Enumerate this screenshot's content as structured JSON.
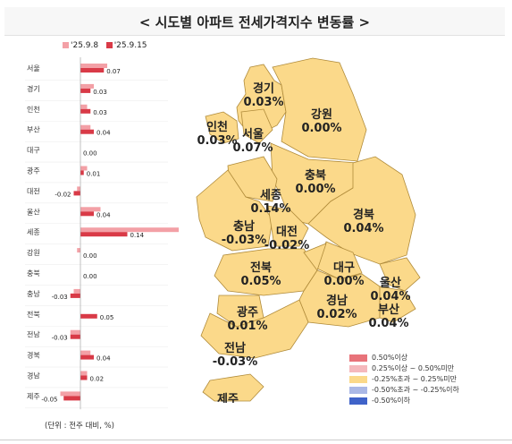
{
  "header": {
    "title": "< 시도별 아파트 전세가격지수 변동률 >"
  },
  "legend": {
    "prev": "'25.9.8",
    "curr": "'25.9.15",
    "prev_color": "#f3a0a6",
    "curr_color": "#d93a47"
  },
  "unit": "(단위 : 전주 대비, %)",
  "chart_data": {
    "type": "bar",
    "orientation": "horizontal",
    "categories": [
      "서울",
      "경기",
      "인천",
      "부산",
      "대구",
      "광주",
      "대전",
      "울산",
      "세종",
      "강원",
      "충북",
      "충남",
      "전북",
      "전남",
      "경북",
      "경남",
      "제주"
    ],
    "series": [
      {
        "name": "'25.9.8",
        "values": [
          0.08,
          0.04,
          0.02,
          0.03,
          0.0,
          0.02,
          -0.01,
          0.06,
          0.3,
          -0.01,
          0.0,
          -0.02,
          0.0,
          -0.03,
          0.03,
          0.02,
          -0.06
        ]
      },
      {
        "name": "'25.9.15",
        "values": [
          0.07,
          0.03,
          0.03,
          0.04,
          0.0,
          0.01,
          -0.02,
          0.04,
          0.14,
          0.0,
          0.0,
          -0.03,
          0.05,
          -0.03,
          0.04,
          0.02,
          -0.05
        ]
      }
    ],
    "data_labels": [
      "0.07",
      "0.03",
      "0.03",
      "0.04",
      "0.00",
      "0.01",
      "-0.02",
      "0.04",
      "0.14",
      "0.00",
      "0.00",
      "-0.03",
      "0.05",
      "-0.03",
      "0.04",
      "0.02",
      "-0.05"
    ]
  },
  "map": {
    "fill": "#fbd98a",
    "stroke": "#ffffff",
    "labels": [
      {
        "name": "경기",
        "value": "0.03%"
      },
      {
        "name": "강원",
        "value": "0.00%"
      },
      {
        "name": "인천",
        "value": "0.03%"
      },
      {
        "name": "서울",
        "value": "0.07%"
      },
      {
        "name": "충북",
        "value": "0.00%"
      },
      {
        "name": "세종",
        "value": "0.14%"
      },
      {
        "name": "경북",
        "value": "0.04%"
      },
      {
        "name": "충남",
        "value": "-0.03%"
      },
      {
        "name": "대전",
        "value": "-0.02%"
      },
      {
        "name": "대구",
        "value": "0.00%"
      },
      {
        "name": "울산",
        "value": "0.04%"
      },
      {
        "name": "전북",
        "value": "0.05%"
      },
      {
        "name": "경남",
        "value": "0.02%"
      },
      {
        "name": "부산",
        "value": "0.04%"
      },
      {
        "name": "광주",
        "value": "0.01%"
      },
      {
        "name": "전남",
        "value": "-0.03%"
      },
      {
        "name": "제주",
        "value": "-0.05%"
      }
    ]
  },
  "map_legend": [
    {
      "label": "0.50%이상",
      "color": "#e8737a"
    },
    {
      "label": "0.25%이상 ~ 0.50%미만",
      "color": "#f5b8bc"
    },
    {
      "label": "-0.25%초과 ~ 0.25%미만",
      "color": "#fbd98a"
    },
    {
      "label": "-0.50%초과 ~ -0.25%이하",
      "color": "#aab8e6"
    },
    {
      "label": "-0.50%이하",
      "color": "#3f63c9"
    }
  ]
}
